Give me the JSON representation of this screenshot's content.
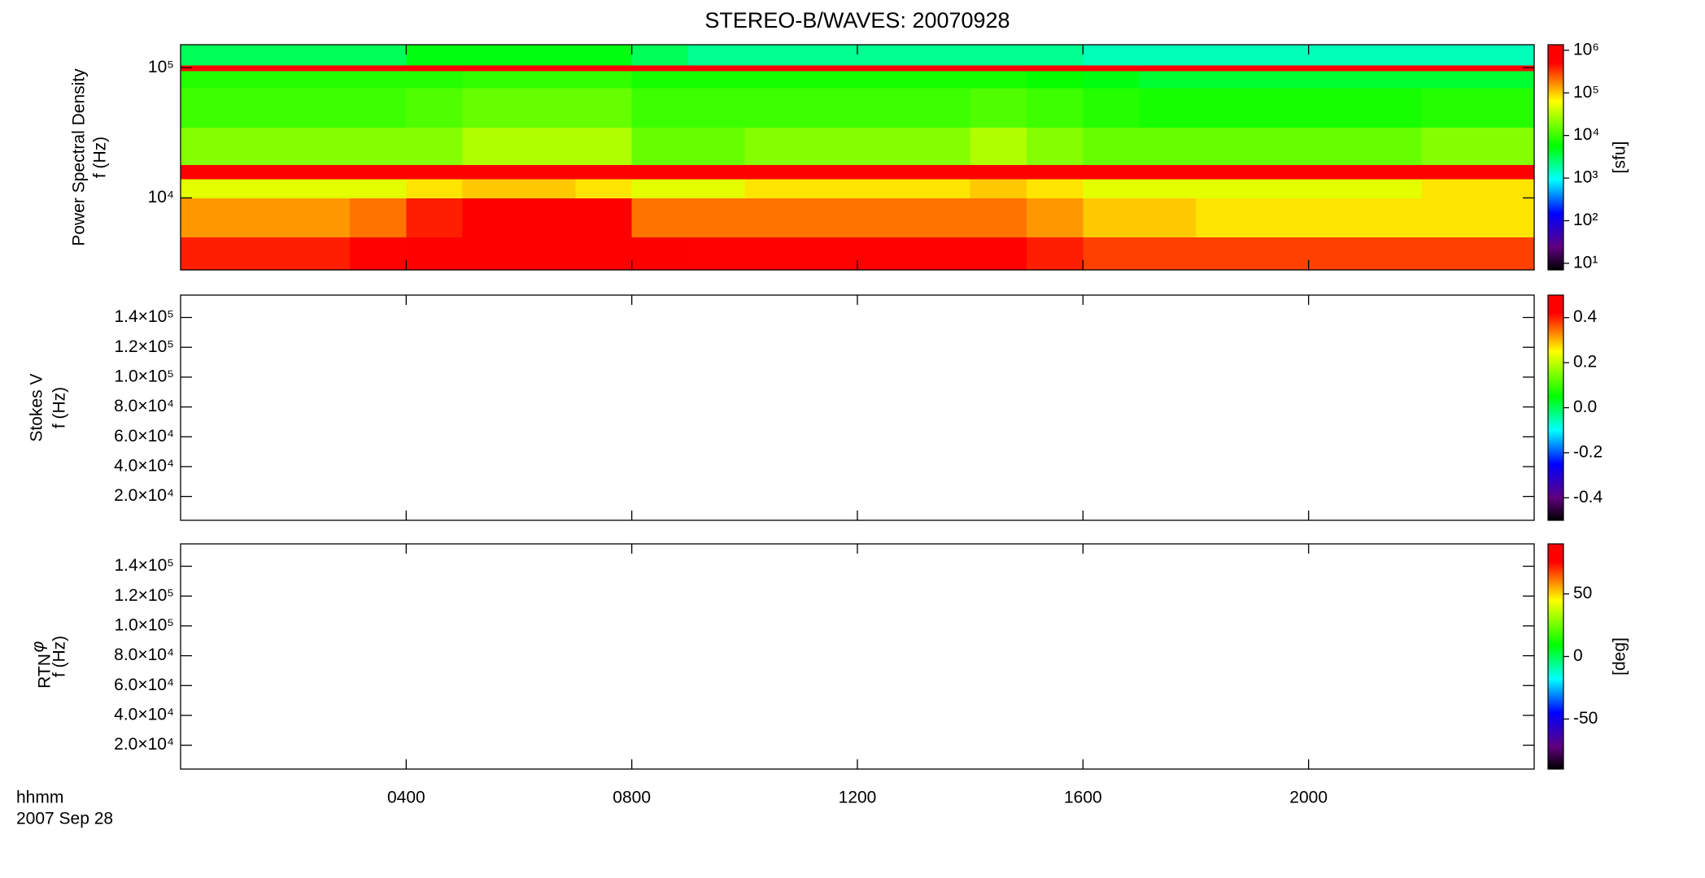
{
  "title": "STEREO-B/WAVES: 20070928",
  "time_label": "hhmm",
  "date_label": "2007 Sep 28",
  "chart_data": [
    {
      "type": "heatmap",
      "ylabel": [
        "Power Spectral Density",
        "f (Hz)"
      ],
      "log_y": true,
      "ylim": [
        2800,
        150000
      ],
      "yticks": [
        {
          "value": 10000,
          "label": "10⁴"
        },
        {
          "value": 100000,
          "label": "10⁵"
        }
      ],
      "xlim": [
        0,
        24
      ],
      "xbins": [
        0,
        1,
        2,
        3,
        4,
        5,
        6,
        7,
        8,
        9,
        10,
        11,
        12,
        13,
        14,
        15,
        16,
        17,
        18,
        19,
        20,
        21,
        22,
        23,
        24
      ],
      "ybins": [
        2800,
        5000,
        10000,
        14000,
        18000,
        35000,
        70000,
        95000,
        105000,
        150000
      ],
      "values": [
        [
          400000,
          400000,
          400000,
          500000,
          800000,
          1000000,
          1000000,
          1000000,
          600000,
          500000,
          500000,
          500000,
          500000,
          500000,
          500000,
          400000,
          300000,
          300000,
          300000,
          300000,
          300000,
          300000,
          300000,
          300000
        ],
        [
          150000,
          150000,
          150000,
          200000,
          400000,
          800000,
          800000,
          600000,
          200000,
          200000,
          200000,
          200000,
          200000,
          200000,
          200000,
          150000,
          100000,
          100000,
          80000,
          80000,
          80000,
          80000,
          80000,
          80000
        ],
        [
          50000,
          50000,
          50000,
          50000,
          80000,
          100000,
          100000,
          80000,
          50000,
          50000,
          80000,
          80000,
          80000,
          80000,
          100000,
          80000,
          50000,
          50000,
          50000,
          50000,
          50000,
          50000,
          80000,
          80000
        ],
        [
          1000000,
          1000000,
          1000000,
          1000000,
          1000000,
          1000000,
          1000000,
          1000000,
          1000000,
          1000000,
          1000000,
          1000000,
          1000000,
          1000000,
          1000000,
          1000000,
          1000000,
          1000000,
          1000000,
          1000000,
          1000000,
          1000000,
          1000000,
          1000000
        ],
        [
          20000,
          20000,
          20000,
          20000,
          20000,
          30000,
          30000,
          30000,
          15000,
          15000,
          20000,
          20000,
          20000,
          20000,
          30000,
          20000,
          15000,
          15000,
          15000,
          15000,
          15000,
          15000,
          20000,
          20000
        ],
        [
          10000,
          10000,
          10000,
          10000,
          12000,
          15000,
          15000,
          15000,
          10000,
          10000,
          10000,
          10000,
          10000,
          10000,
          12000,
          10000,
          8000,
          7000,
          7000,
          7000,
          7000,
          7000,
          8000,
          8000
        ],
        [
          8000,
          8000,
          8000,
          8000,
          8000,
          9000,
          9000,
          9000,
          7000,
          7000,
          7000,
          7000,
          7000,
          7000,
          7000,
          6000,
          5000,
          4000,
          4000,
          4000,
          4000,
          4000,
          4000,
          4000
        ],
        [
          1000000,
          1000000,
          1000000,
          1000000,
          1000000,
          1000000,
          1000000,
          1000000,
          1000000,
          1000000,
          1000000,
          1000000,
          1000000,
          1000000,
          1000000,
          1000000,
          1000000,
          1000000,
          1000000,
          1000000,
          1000000,
          1000000,
          1000000,
          1000000
        ],
        [
          3000,
          3000,
          3000,
          3000,
          5000,
          5000,
          5000,
          5000,
          3000,
          2000,
          2000,
          2000,
          2000,
          2000,
          2000,
          2000,
          1500,
          1500,
          1500,
          1500,
          1500,
          1500,
          1500,
          1500
        ]
      ],
      "colorbar": {
        "label": "[sfu]",
        "log": true,
        "zlim": [
          7,
          1350000
        ],
        "zticks": [
          {
            "value": 10,
            "label": "10¹"
          },
          {
            "value": 100,
            "label": "10²"
          },
          {
            "value": 1000,
            "label": "10³"
          },
          {
            "value": 10000,
            "label": "10⁴"
          },
          {
            "value": 100000,
            "label": "10⁵"
          },
          {
            "value": 1000000,
            "label": "10⁶"
          }
        ]
      }
    },
    {
      "type": "heatmap",
      "ylabel": [
        "Stokes V",
        "f (Hz)"
      ],
      "log_y": false,
      "ylim": [
        4000,
        155000
      ],
      "yticks": [
        {
          "value": 20000,
          "label": "2.0×10⁴"
        },
        {
          "value": 40000,
          "label": "4.0×10⁴"
        },
        {
          "value": 60000,
          "label": "6.0×10⁴"
        },
        {
          "value": 80000,
          "label": "8.0×10⁴"
        },
        {
          "value": 100000,
          "label": "1.0×10⁵"
        },
        {
          "value": 120000,
          "label": "1.2×10⁵"
        },
        {
          "value": 140000,
          "label": "1.4×10⁵"
        }
      ],
      "xlim": [
        0,
        24
      ],
      "colorbar": {
        "log": false,
        "zlim": [
          -0.5,
          0.5
        ],
        "zticks": [
          -0.4,
          -0.2,
          {
            "value": 0,
            "label": "0.0"
          },
          0.2,
          0.4
        ]
      }
    },
    {
      "type": "heatmap",
      "ylabel_symbol": "φ",
      "ylabel_subscript": "RTN",
      "ylabel": [
        "f (Hz)"
      ],
      "log_y": false,
      "ylim": [
        4000,
        155000
      ],
      "yticks": [
        {
          "value": 20000,
          "label": "2.0×10⁴"
        },
        {
          "value": 40000,
          "label": "4.0×10⁴"
        },
        {
          "value": 60000,
          "label": "6.0×10⁴"
        },
        {
          "value": 80000,
          "label": "8.0×10⁴"
        },
        {
          "value": 100000,
          "label": "1.0×10⁵"
        },
        {
          "value": 120000,
          "label": "1.2×10⁵"
        },
        {
          "value": 140000,
          "label": "1.4×10⁵"
        }
      ],
      "xlim": [
        0,
        24
      ],
      "xticks": [
        {
          "value": 4,
          "label": "0400"
        },
        {
          "value": 8,
          "label": "0800"
        },
        {
          "value": 12,
          "label": "1200"
        },
        {
          "value": 16,
          "label": "1600"
        },
        {
          "value": 20,
          "label": "2000"
        }
      ],
      "colorbar": {
        "label": "[deg]",
        "log": false,
        "zlim": [
          -90,
          90
        ],
        "zticks": [
          -50,
          0,
          50
        ]
      }
    }
  ]
}
